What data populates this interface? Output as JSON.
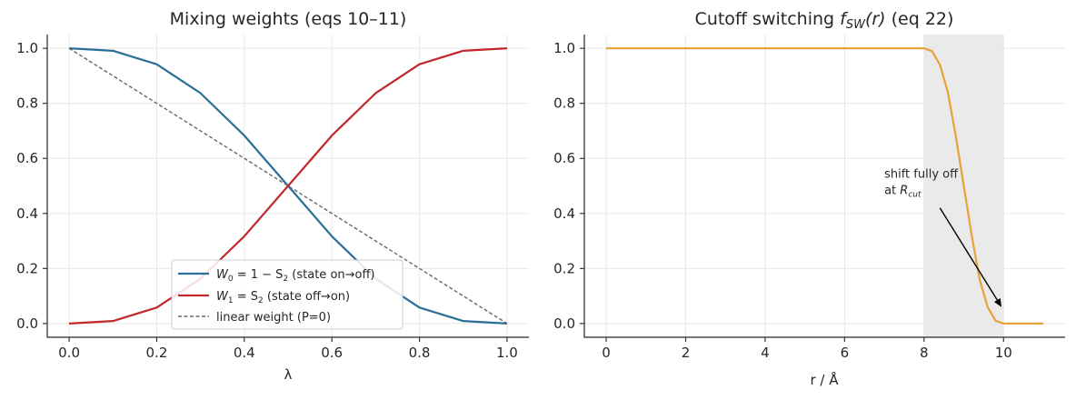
{
  "colors": {
    "w0": "#2a6f97",
    "w1": "#c1272d",
    "linear": "#666666",
    "fsw": "#e8a23a",
    "shade": "#d9d9d9"
  },
  "chart_data": [
    {
      "type": "line",
      "title": "Mixing weights (eqs 10–11)",
      "xlabel": "λ",
      "ylabel": "",
      "xlim": [
        -0.05,
        1.05
      ],
      "ylim": [
        -0.05,
        1.05
      ],
      "xticks": [
        "0.0",
        "0.2",
        "0.4",
        "0.6",
        "0.8",
        "1.0"
      ],
      "xtick_values": [
        0,
        0.2,
        0.4,
        0.6,
        0.8,
        1.0
      ],
      "yticks": [
        "0.0",
        "0.2",
        "0.4",
        "0.6",
        "0.8",
        "1.0"
      ],
      "ytick_values": [
        0,
        0.2,
        0.4,
        0.6,
        0.8,
        1.0
      ],
      "grid": true,
      "legend_position": "lower-center",
      "x": [
        0,
        0.1,
        0.2,
        0.3,
        0.4,
        0.5,
        0.6,
        0.7,
        0.8,
        0.9,
        1.0
      ],
      "series": [
        {
          "name": "W0 = 1 − S2  (state on→off)",
          "legend_main": "W",
          "legend_sub": "0",
          "legend_eq": " = 1 − S",
          "legend_sub2": "2",
          "legend_tail": "  (state on→off)",
          "style": "solid",
          "values": [
            1.0,
            0.991,
            0.942,
            0.837,
            0.683,
            0.5,
            0.317,
            0.163,
            0.058,
            0.009,
            0.0
          ]
        },
        {
          "name": "W1 = S2  (state off→on)",
          "legend_main": "W",
          "legend_sub": "1",
          "legend_eq": " = S",
          "legend_sub2": "2",
          "legend_tail": "  (state off→on)",
          "style": "solid",
          "values": [
            0.0,
            0.009,
            0.058,
            0.163,
            0.317,
            0.5,
            0.683,
            0.837,
            0.942,
            0.991,
            1.0
          ]
        },
        {
          "name": "linear weight (P=0)",
          "legend_main": "linear weight (P=0)",
          "style": "dashed",
          "values": [
            1.0,
            0.9,
            0.8,
            0.7,
            0.6,
            0.5,
            0.4,
            0.3,
            0.2,
            0.1,
            0.0
          ]
        }
      ]
    },
    {
      "type": "line",
      "title_prefix": "Cutoff switching ",
      "title_f": "f",
      "title_sub": "SW",
      "title_suffix_r": "(r)",
      "title_suffix": " (eq 22)",
      "xlabel": "r / Å",
      "ylabel": "",
      "xlim": [
        -0.55,
        11.55
      ],
      "ylim": [
        -0.05,
        1.05
      ],
      "xticks": [
        "0",
        "2",
        "4",
        "6",
        "8",
        "10"
      ],
      "xtick_values": [
        0,
        2,
        4,
        6,
        8,
        10
      ],
      "yticks": [
        "0.0",
        "0.2",
        "0.4",
        "0.6",
        "0.8",
        "1.0"
      ],
      "ytick_values": [
        0,
        0.2,
        0.4,
        0.6,
        0.8,
        1.0
      ],
      "grid": true,
      "shaded_region": [
        8,
        10
      ],
      "x": [
        0,
        2,
        4,
        6,
        7.5,
        8.0,
        8.2,
        8.4,
        8.6,
        8.8,
        9.0,
        9.2,
        9.4,
        9.6,
        9.8,
        10.0,
        10.5,
        11.0
      ],
      "series": [
        {
          "name": "",
          "values": [
            1.0,
            1.0,
            1.0,
            1.0,
            1.0,
            1.0,
            0.99,
            0.94,
            0.84,
            0.68,
            0.5,
            0.32,
            0.16,
            0.06,
            0.01,
            0.0,
            0.0,
            0.0
          ]
        }
      ],
      "annotation": {
        "line1": "shift fully off",
        "line2_prefix": "at ",
        "line2_R": "R",
        "line2_sub": "cut",
        "text_x": 7.0,
        "text_y": 0.53,
        "arrow_from": [
          8.4,
          0.42
        ],
        "arrow_to": [
          9.95,
          0.06
        ]
      }
    }
  ]
}
